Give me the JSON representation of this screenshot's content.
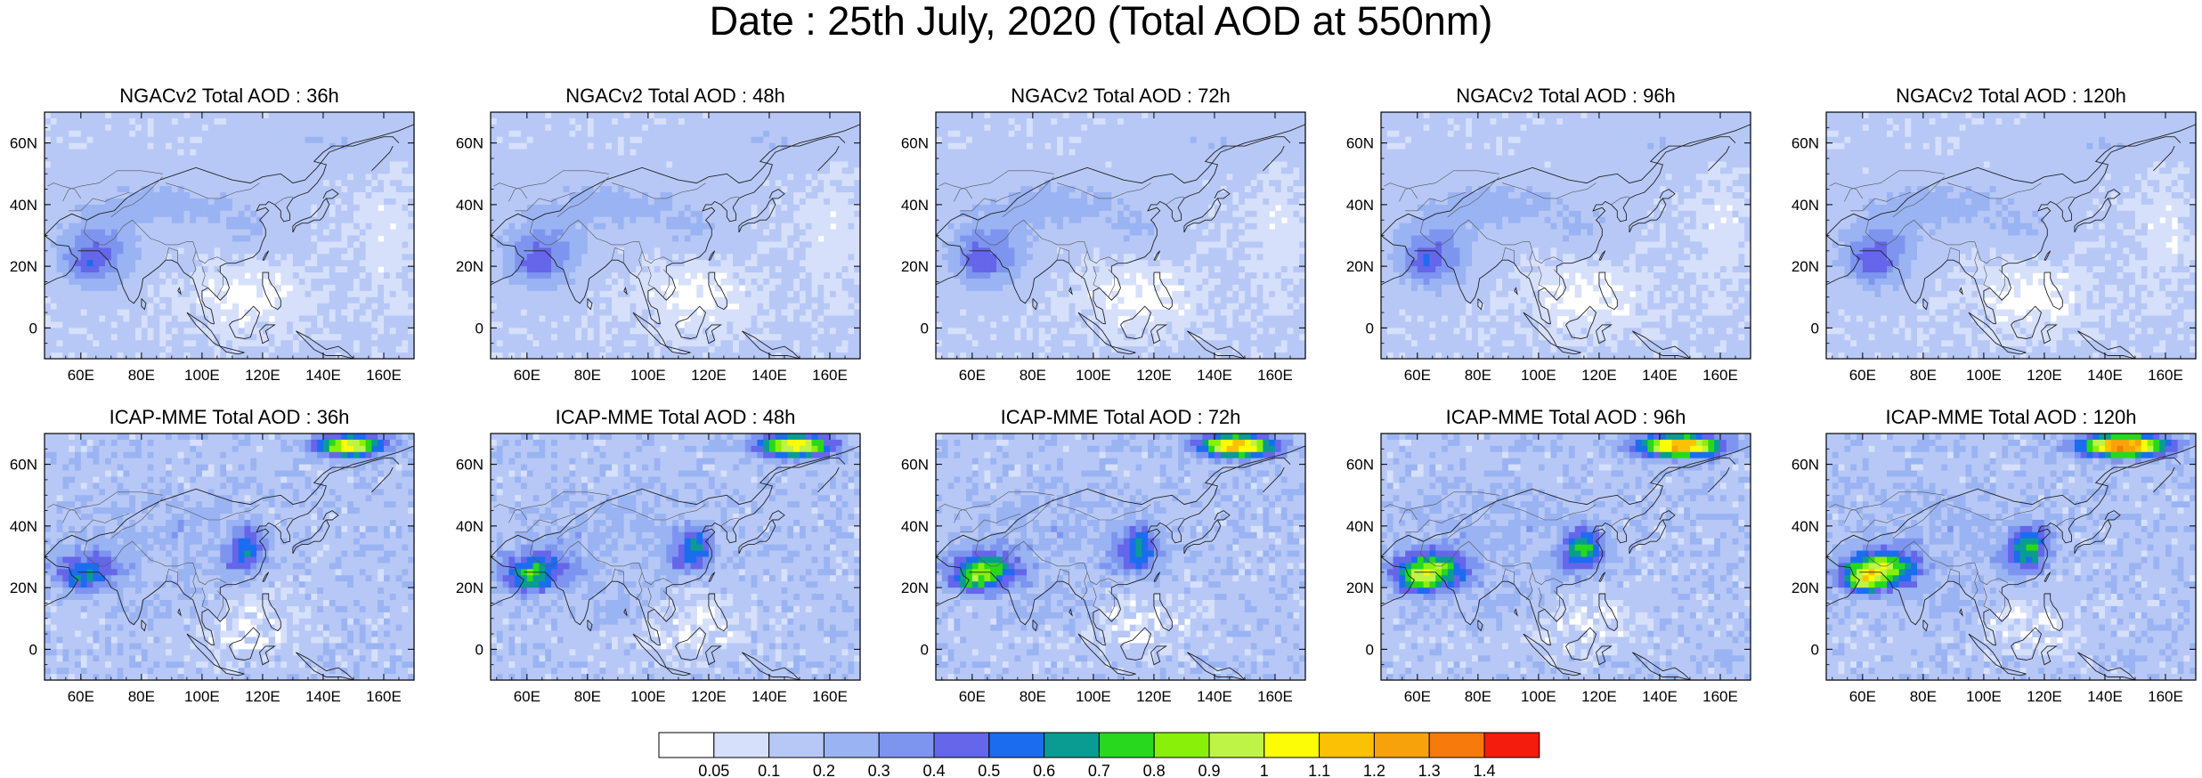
{
  "title": "Date : 25th July, 2020 (Total AOD at 550nm)",
  "rows": [
    {
      "model": "NGACv2",
      "panels": [
        {
          "title": "NGACv2 Total AOD : 36h"
        },
        {
          "title": "NGACv2 Total AOD : 48h"
        },
        {
          "title": "NGACv2 Total AOD : 72h"
        },
        {
          "title": "NGACv2 Total AOD : 96h"
        },
        {
          "title": "NGACv2 Total AOD : 120h"
        }
      ]
    },
    {
      "model": "ICAP-MME",
      "panels": [
        {
          "title": "ICAP-MME Total AOD : 36h"
        },
        {
          "title": "ICAP-MME Total AOD : 48h"
        },
        {
          "title": "ICAP-MME Total AOD : 72h"
        },
        {
          "title": "ICAP-MME Total AOD : 96h"
        },
        {
          "title": "ICAP-MME Total AOD : 120h"
        }
      ]
    }
  ],
  "axes": {
    "lon_range": [
      48,
      170
    ],
    "lat_range": [
      -10,
      70
    ],
    "lon_ticks": [
      "60E",
      "80E",
      "100E",
      "120E",
      "140E",
      "160E"
    ],
    "lon_tick_values": [
      60,
      80,
      100,
      120,
      140,
      160
    ],
    "lat_ticks": [
      "0",
      "20N",
      "40N",
      "60N"
    ],
    "lat_tick_values": [
      0,
      20,
      40,
      60
    ]
  },
  "colorbar": {
    "labels": [
      "0.05",
      "0.1",
      "0.2",
      "0.3",
      "0.4",
      "0.5",
      "0.6",
      "0.7",
      "0.8",
      "0.9",
      "1",
      "1.1",
      "1.2",
      "1.3",
      "1.4"
    ],
    "colors": [
      "#ffffff",
      "#d6e0fb",
      "#b7c8f6",
      "#9ab3f2",
      "#7e95f0",
      "#6566e9",
      "#1c6cf0",
      "#0a9c93",
      "#27d81f",
      "#89f00a",
      "#bdf446",
      "#fbfc05",
      "#fbc205",
      "#f8a20b",
      "#f77b0c",
      "#f41c0c"
    ]
  }
}
